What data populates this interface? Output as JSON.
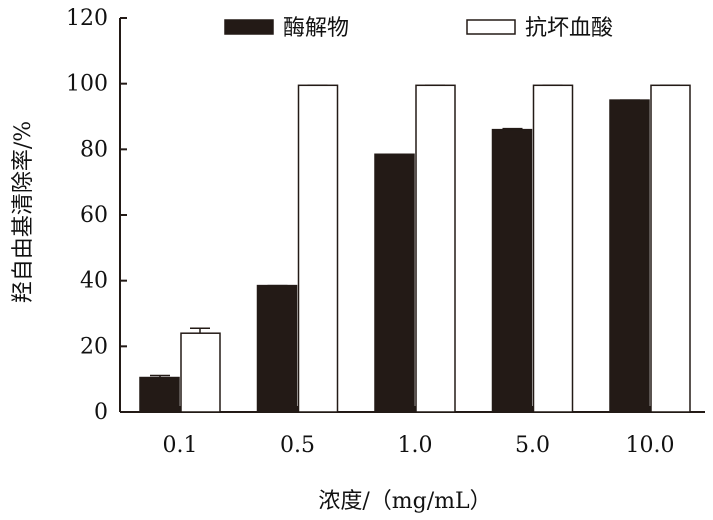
{
  "chart_data": {
    "type": "bar",
    "categories": [
      "0.1",
      "0.5",
      "1.0",
      "5.0",
      "10.0"
    ],
    "series": [
      {
        "name": "酶解物",
        "values": [
          10.5,
          38.5,
          78.5,
          86.0,
          95.0
        ],
        "errors": [
          0.6,
          0,
          0,
          0.3,
          0
        ],
        "color": "#231a16",
        "border": "#231a16"
      },
      {
        "name": "抗坏血酸",
        "values": [
          24.0,
          99.5,
          99.5,
          99.5,
          99.5
        ],
        "errors": [
          1.5,
          0,
          0,
          0,
          0
        ],
        "color": "#ffffff",
        "border": "#231a16"
      }
    ],
    "xlabel": "浓度/（mg/mL）",
    "ylabel": "羟自由基清除率/%",
    "ylim": [
      0,
      120
    ],
    "yticks": [
      "0",
      "20",
      "40",
      "60",
      "80",
      "100",
      "120"
    ],
    "legend_position": "top",
    "grid": false
  }
}
